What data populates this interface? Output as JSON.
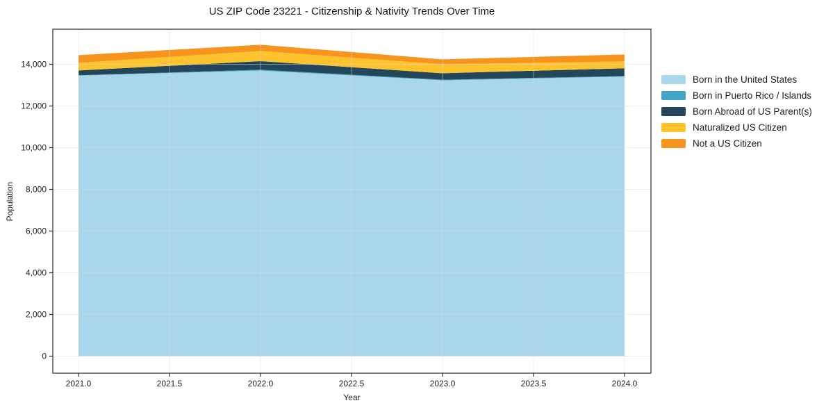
{
  "chart_data": {
    "type": "area",
    "stacked": true,
    "title": "US ZIP Code 23221 - Citizenship & Nativity Trends Over Time",
    "xlabel": "Year",
    "ylabel": "Population",
    "x": [
      2021,
      2022,
      2023,
      2024
    ],
    "series": [
      {
        "name": "Born in the United States",
        "color": "#A9D6EA",
        "values": [
          13460,
          13700,
          13230,
          13410
        ]
      },
      {
        "name": "Born in Puerto Rico / Islands",
        "color": "#43A5C6",
        "values": [
          15,
          40,
          30,
          25
        ]
      },
      {
        "name": "Born Abroad of US Parent(s)",
        "color": "#24465A",
        "values": [
          230,
          410,
          310,
          375
        ]
      },
      {
        "name": "Naturalized US Citizen",
        "color": "#FCC32C",
        "values": [
          365,
          485,
          430,
          330
        ]
      },
      {
        "name": "Not a US Citizen",
        "color": "#F6941E",
        "values": [
          365,
          300,
          235,
          330
        ]
      }
    ],
    "totals": [
      14435,
      14935,
      14235,
      14470
    ],
    "x_tick_labels": [
      "2021.0",
      "2021.5",
      "2022.0",
      "2022.5",
      "2023.0",
      "2023.5",
      "2024.0"
    ],
    "x_tick_values": [
      2021,
      2021.5,
      2022,
      2022.5,
      2023,
      2023.5,
      2024
    ],
    "y_tick_labels": [
      "0",
      "2,000",
      "4,000",
      "6,000",
      "8,000",
      "10,000",
      "12,000",
      "14,000"
    ],
    "y_tick_values": [
      0,
      2000,
      4000,
      6000,
      8000,
      10000,
      12000,
      14000
    ],
    "xlim": [
      2021,
      2024
    ],
    "ylim_ticks": [
      0,
      14000
    ],
    "grid": true,
    "legend_position": "right",
    "colors": {
      "axis": "#2b2b2b",
      "tick_text": "#222222",
      "grid": "#d9d9d9",
      "background": "#ffffff"
    }
  }
}
